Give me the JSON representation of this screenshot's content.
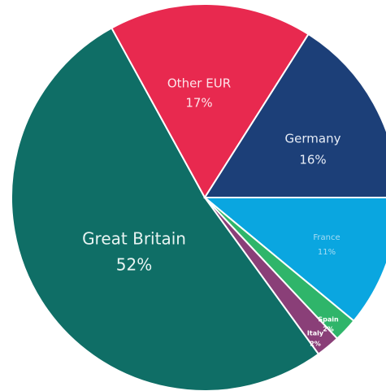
{
  "chart_data": {
    "type": "pie",
    "categories": [
      "France",
      "Spain",
      "Italy",
      "Great Britain",
      "Other EUR",
      "Germany"
    ],
    "values": [
      11,
      2,
      2,
      52,
      17,
      16
    ],
    "value_labels": [
      "11%",
      "2%",
      "2%",
      "52%",
      "17%",
      "16%"
    ],
    "colors": [
      "#0aa6e0",
      "#2fb56a",
      "#8a3f78",
      "#0f6e66",
      "#e8294f",
      "#1c3f78"
    ]
  }
}
